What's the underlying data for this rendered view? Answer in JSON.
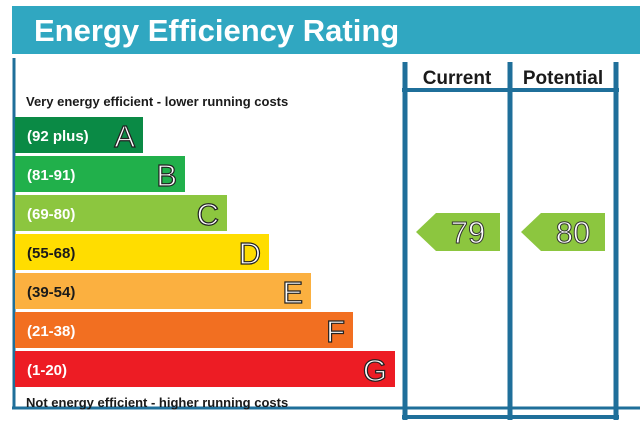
{
  "header": {
    "title": "Energy Efficiency Rating"
  },
  "columns": {
    "current": "Current",
    "potential": "Potential"
  },
  "notes": {
    "top": "Very energy efficient - lower running costs",
    "bottom": "Not energy efficient - higher running costs"
  },
  "colors": {
    "frame": "#1f6f9a",
    "header": "#30a7c1",
    "arrow": "#8cc63f"
  },
  "chart_data": {
    "type": "bar",
    "title": "Energy Efficiency Rating",
    "bands": [
      {
        "letter": "A",
        "range": "(92 plus)",
        "color": "#0a8a45"
      },
      {
        "letter": "B",
        "range": "(81-91)",
        "color": "#21b04b"
      },
      {
        "letter": "C",
        "range": "(69-80)",
        "color": "#8cc63f"
      },
      {
        "letter": "D",
        "range": "(55-68)",
        "color": "#ffdd00"
      },
      {
        "letter": "E",
        "range": "(39-54)",
        "color": "#fbb040"
      },
      {
        "letter": "F",
        "range": "(21-38)",
        "color": "#f26f21"
      },
      {
        "letter": "G",
        "range": "(1-20)",
        "color": "#ed1c24"
      }
    ],
    "series": [
      {
        "name": "Current",
        "values": [
          79
        ],
        "band": "C"
      },
      {
        "name": "Potential",
        "values": [
          80
        ],
        "band": "C"
      }
    ]
  }
}
